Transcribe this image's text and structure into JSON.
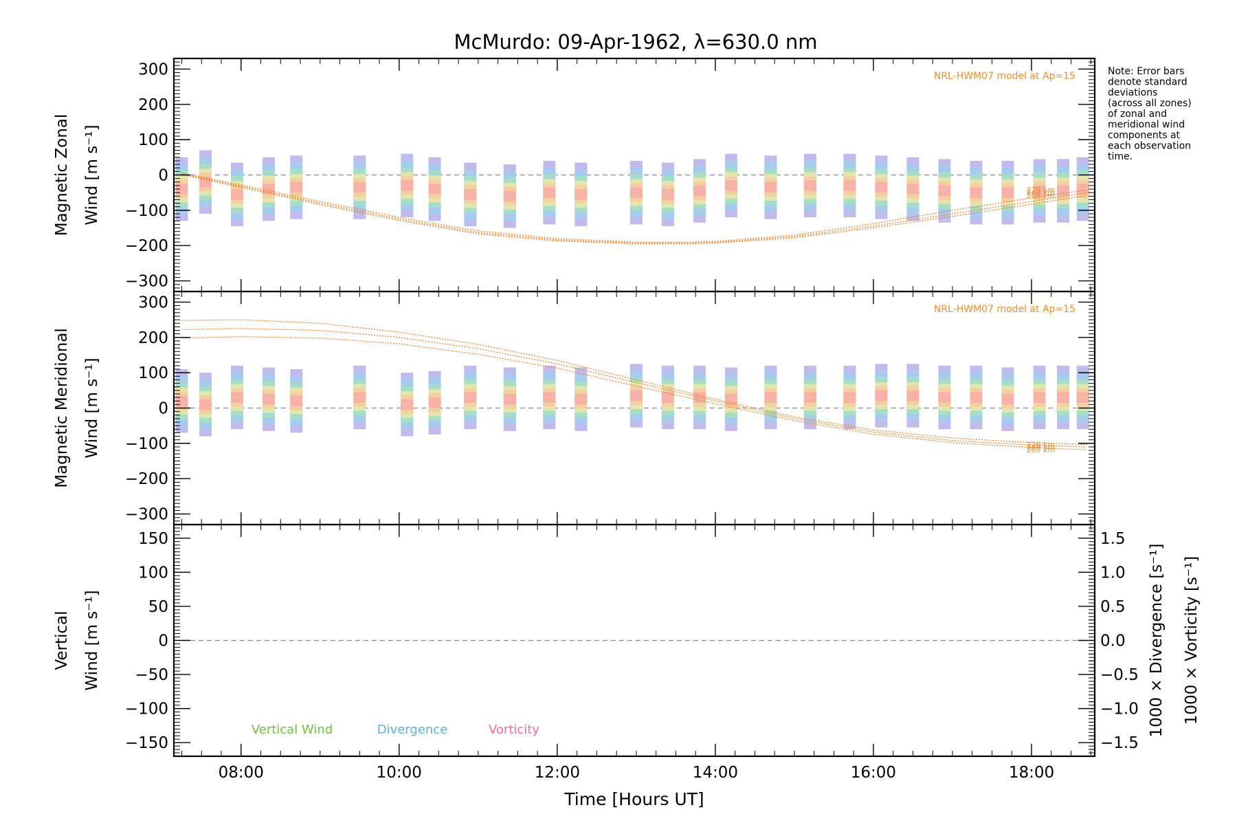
{
  "title": "McMurdo: 09-Apr-1962, λ=630.0 nm",
  "note_lines": [
    "Note: Error bars",
    "denote standard",
    "deviations",
    "(across all zones)",
    "of zonal and",
    "meridional wind",
    "components at",
    "each observation",
    "time."
  ],
  "colors": {
    "model": "#f28c28",
    "vertical": "#6cc23c",
    "divergence": "#5fb1e0",
    "vorticity": "#f26d9c",
    "errorbar": "#a9a6e6",
    "zero_line": "#888888"
  },
  "chart_data": [
    {
      "type": "scatter",
      "panel": "zonal",
      "ylabel_lines": [
        "Magnetic Zonal",
        "Wind [m s⁻¹]"
      ],
      "ylim": [
        -330,
        330
      ],
      "yticks": [
        -300,
        -200,
        -100,
        0,
        100,
        200,
        300
      ],
      "ytick_labels": [
        "−300",
        "−200",
        "−100",
        "0",
        "100",
        "200",
        "300"
      ],
      "model_label": "NRL-HWM07 model at Ap=15",
      "model_series": [
        {
          "name": "220 km",
          "x": [
            7.25,
            8.0,
            9.0,
            10.0,
            11.0,
            12.0,
            13.0,
            13.6,
            14.0,
            15.0,
            16.0,
            17.0,
            18.0,
            18.7
          ],
          "y": [
            5,
            -28,
            -75,
            -120,
            -158,
            -180,
            -190,
            -190,
            -188,
            -170,
            -138,
            -100,
            -65,
            -42
          ]
        },
        {
          "name": "240 km",
          "x": [
            7.25,
            8.0,
            9.0,
            10.0,
            11.0,
            12.0,
            13.0,
            13.6,
            14.0,
            15.0,
            16.0,
            17.0,
            18.0,
            18.7
          ],
          "y": [
            3,
            -32,
            -80,
            -125,
            -163,
            -184,
            -193,
            -193,
            -191,
            -174,
            -145,
            -110,
            -75,
            -50
          ]
        },
        {
          "name": "260 km",
          "x": [
            7.25,
            8.0,
            9.0,
            10.0,
            11.0,
            12.0,
            13.0,
            13.6,
            14.0,
            15.0,
            16.0,
            17.0,
            18.0,
            18.7
          ],
          "y": [
            1,
            -35,
            -84,
            -129,
            -167,
            -187,
            -195,
            -195,
            -193,
            -178,
            -150,
            -117,
            -83,
            -58
          ]
        }
      ],
      "observations": [
        {
          "x": [
            7.25,
            7.55,
            7.95,
            8.35,
            8.7,
            9.5,
            10.1,
            10.45,
            10.9,
            11.4,
            11.9,
            12.3,
            13.0,
            13.4,
            13.8,
            14.2,
            14.7,
            15.2,
            15.7,
            16.1,
            16.5,
            16.9,
            17.3,
            17.7,
            18.1,
            18.4,
            18.65
          ],
          "y": [
            -40,
            -20,
            -55,
            -40,
            -35,
            -35,
            -30,
            -40,
            -55,
            -60,
            -50,
            -55,
            -50,
            -55,
            -45,
            -30,
            -35,
            -30,
            -30,
            -35,
            -40,
            -45,
            -50,
            -50,
            -45,
            -45,
            -40
          ]
        }
      ]
    },
    {
      "type": "scatter",
      "panel": "meridional",
      "ylabel_lines": [
        "Magnetic Meridional",
        "Wind [m s⁻¹]"
      ],
      "ylim": [
        -330,
        330
      ],
      "yticks": [
        -300,
        -200,
        -100,
        0,
        100,
        200,
        300
      ],
      "ytick_labels": [
        "−300",
        "−200",
        "−100",
        "0",
        "100",
        "200",
        "300"
      ],
      "model_label": "NRL-HWM07 model at Ap=15",
      "model_series": [
        {
          "name": "220 km",
          "x": [
            7.25,
            8.0,
            9.0,
            10.0,
            11.0,
            12.0,
            13.0,
            14.0,
            15.0,
            16.0,
            17.0,
            18.0,
            18.7
          ],
          "y": [
            248,
            250,
            240,
            215,
            180,
            135,
            80,
            25,
            -25,
            -62,
            -85,
            -98,
            -103
          ]
        },
        {
          "name": "240 km",
          "x": [
            7.25,
            8.0,
            9.0,
            10.0,
            11.0,
            12.0,
            13.0,
            14.0,
            15.0,
            16.0,
            17.0,
            18.0,
            18.7
          ],
          "y": [
            222,
            225,
            220,
            200,
            168,
            125,
            72,
            20,
            -30,
            -68,
            -92,
            -105,
            -110
          ]
        },
        {
          "name": "260 km",
          "x": [
            7.25,
            8.0,
            9.0,
            10.0,
            11.0,
            12.0,
            13.0,
            14.0,
            15.0,
            16.0,
            17.0,
            18.0,
            18.7
          ],
          "y": [
            198,
            202,
            198,
            182,
            152,
            113,
            62,
            12,
            -36,
            -74,
            -98,
            -112,
            -118
          ]
        }
      ],
      "observations": [
        {
          "x": [
            7.25,
            7.55,
            7.95,
            8.35,
            8.7,
            9.5,
            10.1,
            10.45,
            10.9,
            11.4,
            11.9,
            12.3,
            13.0,
            13.4,
            13.8,
            14.2,
            14.7,
            15.2,
            15.7,
            16.1,
            16.5,
            16.9,
            17.3,
            17.7,
            18.1,
            18.4,
            18.65
          ],
          "y": [
            20,
            10,
            30,
            25,
            20,
            30,
            10,
            15,
            30,
            25,
            30,
            25,
            35,
            30,
            30,
            25,
            30,
            30,
            30,
            35,
            35,
            30,
            30,
            25,
            30,
            30,
            30
          ]
        }
      ]
    },
    {
      "type": "line",
      "panel": "vertical",
      "ylabel_lines": [
        "Vertical",
        "Wind [m s⁻¹]"
      ],
      "ylim": [
        -170,
        170
      ],
      "yticks": [
        -150,
        -100,
        -50,
        0,
        50,
        100,
        150
      ],
      "ytick_labels": [
        "−150",
        "−100",
        "−50",
        "0",
        "50",
        "100",
        "150"
      ],
      "y2label_divergence": "1000 × Divergence [s⁻¹]",
      "y2label_vorticity": "1000 × Vorticity [s⁻¹]",
      "y2lim": [
        -1.7,
        1.7
      ],
      "y2ticks": [
        -1.5,
        -1.0,
        -0.5,
        0.0,
        0.5,
        1.0,
        1.5
      ],
      "y2tick_labels": [
        "−1.5",
        "−1.0",
        "−0.5",
        "0.0",
        "0.5",
        "1.0",
        "1.5"
      ],
      "legend": [
        {
          "name": "Vertical Wind",
          "color": "#6cc23c"
        },
        {
          "name": "Divergence",
          "color": "#5fb1e0"
        },
        {
          "name": "Vorticity",
          "color": "#f26d9c"
        }
      ],
      "series": []
    }
  ],
  "xaxis": {
    "label": "Time [Hours UT]",
    "range": [
      7.15,
      18.8
    ],
    "ticks": [
      8,
      10,
      12,
      14,
      16,
      18
    ],
    "tick_labels": [
      "08:00",
      "10:00",
      "12:00",
      "14:00",
      "16:00",
      "18:00"
    ]
  }
}
